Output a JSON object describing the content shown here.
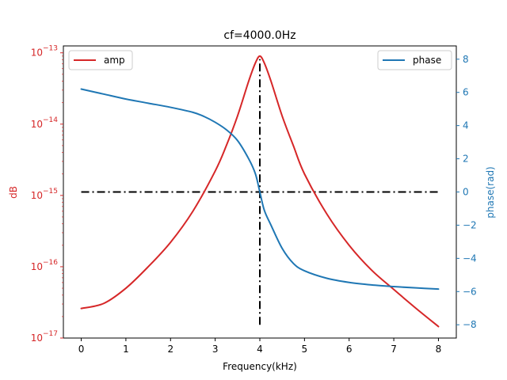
{
  "chart_data": {
    "type": "line",
    "title": "cf=4000.0Hz",
    "xlabel": "Frequency(kHz)",
    "ylabel_left": "dB",
    "ylabel_right": "phase(rad)",
    "xlim": [
      -0.4,
      8.4
    ],
    "x_ticks": [
      0,
      1,
      2,
      3,
      4,
      5,
      6,
      7,
      8
    ],
    "y_left_scale": "log",
    "y_left_lim": [
      1e-17,
      1.25e-13
    ],
    "y_left_ticks": [
      {
        "value": 1e-17,
        "base": "10",
        "exp": "−17"
      },
      {
        "value": 1e-16,
        "base": "10",
        "exp": "−16"
      },
      {
        "value": 1e-15,
        "base": "10",
        "exp": "−15"
      },
      {
        "value": 1e-14,
        "base": "10",
        "exp": "−14"
      },
      {
        "value": 1e-13,
        "base": "10",
        "exp": "−13"
      }
    ],
    "y_right_lim": [
      -8.8,
      8.8
    ],
    "y_right_ticks": [
      -8,
      -6,
      -4,
      -2,
      0,
      2,
      4,
      6,
      8
    ],
    "y_right_tick_labels": [
      "−8",
      "−6",
      "−4",
      "−2",
      "0",
      "2",
      "4",
      "6",
      "8"
    ],
    "colors": {
      "amp": "#d62728",
      "phase": "#1f77b4",
      "ref": "#000000"
    },
    "series": [
      {
        "name": "amp",
        "axis": "left",
        "x": [
          0,
          0.5,
          1,
          1.5,
          2,
          2.5,
          3,
          3.25,
          3.5,
          3.75,
          3.9,
          4,
          4.1,
          4.25,
          4.5,
          4.75,
          5,
          5.5,
          6,
          6.5,
          7,
          7.5,
          8
        ],
        "y": [
          2.6e-17,
          3.05e-17,
          5e-17,
          1e-16,
          2.2e-16,
          6e-16,
          2.2e-15,
          5e-15,
          1.3e-14,
          4e-14,
          7.2e-14,
          9e-14,
          7.2e-14,
          4e-14,
          1.3e-14,
          5e-15,
          2e-15,
          5.5e-16,
          2e-16,
          9e-17,
          4.8e-17,
          2.6e-17,
          1.45e-17
        ]
      },
      {
        "name": "phase",
        "axis": "right",
        "x": [
          0,
          0.5,
          1,
          1.5,
          2,
          2.5,
          2.75,
          3,
          3.25,
          3.5,
          3.75,
          3.9,
          4,
          4.1,
          4.25,
          4.5,
          4.75,
          5,
          5.5,
          6,
          6.5,
          7,
          7.5,
          8
        ],
        "y": [
          6.2,
          5.9,
          5.6,
          5.35,
          5.1,
          4.8,
          4.55,
          4.2,
          3.75,
          3.1,
          2.0,
          1.1,
          0.0,
          -1.1,
          -2.0,
          -3.4,
          -4.3,
          -4.75,
          -5.2,
          -5.45,
          -5.6,
          -5.7,
          -5.78,
          -5.85
        ]
      }
    ],
    "reference_lines": [
      {
        "orientation": "horizontal",
        "y": 0,
        "axis": "right",
        "x_from": 0,
        "x_to": 8,
        "style": "dashdot"
      },
      {
        "orientation": "vertical",
        "x": 4,
        "axis": "right",
        "y_from": -8,
        "y_to": 8,
        "style": "dashdot"
      }
    ],
    "legends": [
      {
        "position": "upper-left",
        "entries": [
          "amp"
        ]
      },
      {
        "position": "upper-right",
        "entries": [
          "phase"
        ]
      }
    ]
  }
}
